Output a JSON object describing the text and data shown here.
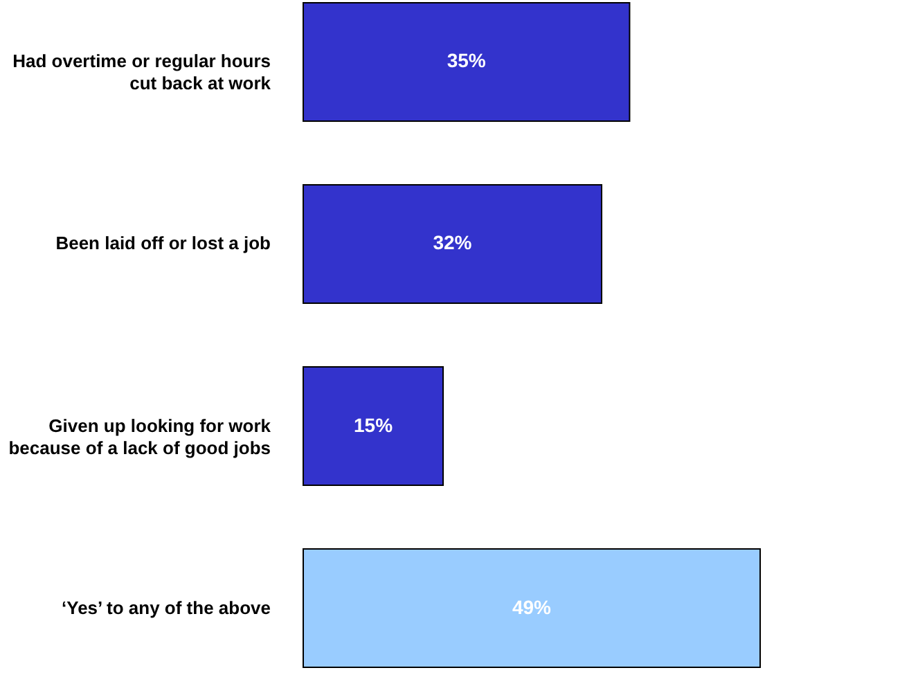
{
  "chart_data": {
    "type": "bar",
    "orientation": "horizontal",
    "categories": [
      "Had overtime or regular hours\ncut back at work",
      "Been laid off or lost a job",
      "Given up looking for work\nbecause of a lack of good jobs",
      "‘Yes’ to any of the above"
    ],
    "values": [
      35,
      32,
      15,
      49
    ],
    "colors": [
      "#3333cc",
      "#3333cc",
      "#3333cc",
      "#99ccff"
    ],
    "value_labels": [
      "35%",
      "32%",
      "15%",
      "49%"
    ]
  }
}
